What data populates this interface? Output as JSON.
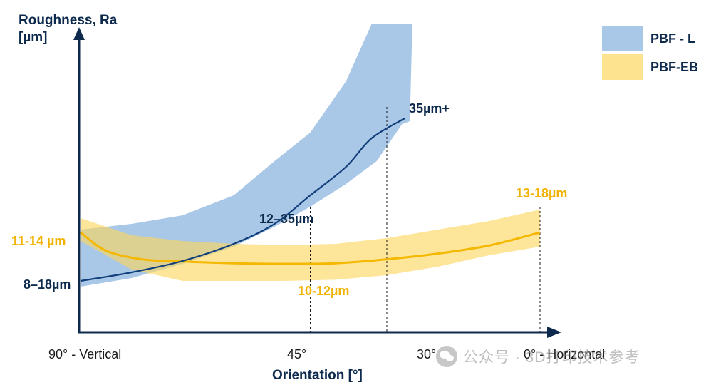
{
  "chart_data": {
    "type": "area",
    "ylabel_line1": "Roughness, Ra",
    "ylabel_line2": "[µm]",
    "xlabel": "Orientation  [°]",
    "x_ticks": [
      {
        "value": 90,
        "label": "90° - Vertical"
      },
      {
        "value": 45,
        "label": "45°"
      },
      {
        "value": 30,
        "label": "30°"
      },
      {
        "value": 0,
        "label": "0° - Horizontal"
      }
    ],
    "xlim": [
      90,
      -3
    ],
    "ylim": [
      0,
      55
    ],
    "legend_position": "top-right",
    "series": [
      {
        "name": "PBF - L",
        "band_color": "#a9c7e7",
        "line_color": "#123f7a",
        "upper": [
          [
            90,
            18
          ],
          [
            80,
            19
          ],
          [
            70,
            20.5
          ],
          [
            60,
            24
          ],
          [
            52,
            30
          ],
          [
            45,
            35
          ],
          [
            38,
            44
          ],
          [
            33,
            54
          ],
          [
            25,
            54
          ],
          [
            25.5,
            37
          ]
        ],
        "lower": [
          [
            90,
            8
          ],
          [
            80,
            9.5
          ],
          [
            70,
            12
          ],
          [
            60,
            15
          ],
          [
            52,
            18.5
          ],
          [
            45,
            22
          ],
          [
            38,
            26
          ],
          [
            32,
            30
          ],
          [
            27,
            36.5
          ]
        ],
        "line": [
          [
            90,
            9
          ],
          [
            80,
            10.5
          ],
          [
            70,
            12.5
          ],
          [
            60,
            15.5
          ],
          [
            52,
            19
          ],
          [
            45,
            24
          ],
          [
            38,
            29
          ],
          [
            33,
            34
          ],
          [
            26.5,
            37.5
          ]
        ]
      },
      {
        "name": "PBF-EB",
        "band_color": "#fde38f",
        "line_color": "#f5b800",
        "upper": [
          [
            90,
            20
          ],
          [
            80,
            17
          ],
          [
            70,
            16
          ],
          [
            60,
            15.5
          ],
          [
            50,
            15.3
          ],
          [
            40,
            15.5
          ],
          [
            30,
            16.5
          ],
          [
            20,
            18
          ],
          [
            10,
            19.5
          ],
          [
            0,
            21.5
          ]
        ],
        "lower": [
          [
            90,
            16
          ],
          [
            80,
            11
          ],
          [
            70,
            9
          ],
          [
            60,
            9
          ],
          [
            50,
            9
          ],
          [
            40,
            9.2
          ],
          [
            30,
            10
          ],
          [
            20,
            11.5
          ],
          [
            10,
            13.5
          ],
          [
            0,
            15
          ]
        ],
        "line": [
          [
            90,
            17.5
          ],
          [
            85,
            14.3
          ],
          [
            78,
            12.8
          ],
          [
            70,
            12.4
          ],
          [
            60,
            12.1
          ],
          [
            50,
            12
          ],
          [
            40,
            12.1
          ],
          [
            30,
            12.8
          ],
          [
            20,
            13.8
          ],
          [
            10,
            15.2
          ],
          [
            0,
            17.5
          ]
        ]
      }
    ],
    "guides": [
      45,
      30,
      0
    ],
    "annotations": [
      {
        "text": "11-14 µm",
        "color": "gold"
      },
      {
        "text": "8–18µm",
        "color": "navy"
      },
      {
        "text": "12–35µm",
        "color": "navy"
      },
      {
        "text": "10-12µm",
        "color": "gold"
      },
      {
        "text": "35µm+",
        "color": "navy"
      },
      {
        "text": "13-18µm",
        "color": "gold"
      }
    ]
  },
  "legend": [
    {
      "label": "PBF - L",
      "color": "#a9c7e7"
    },
    {
      "label": "PBF-EB",
      "color": "#fde38f"
    }
  ],
  "watermark": {
    "text": "公众号 · 3D打印技术参考",
    "icon": "wechat-icon"
  }
}
